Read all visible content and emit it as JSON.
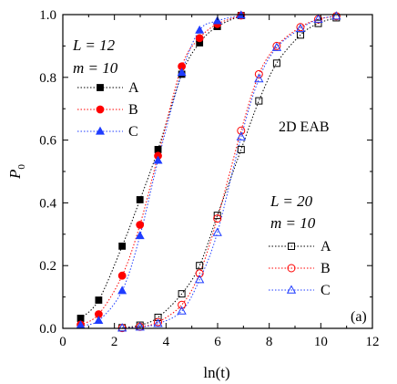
{
  "chart_data": {
    "type": "scatter",
    "xlabel": "ln(t)",
    "ylabel": "P",
    "ylabel_sub": "0",
    "xlim": [
      0,
      12
    ],
    "ylim": [
      0,
      1.0
    ],
    "xticks": [
      0,
      2,
      4,
      6,
      8,
      10,
      12
    ],
    "xtick_labels": [
      "0",
      "2",
      "4",
      "6",
      "8",
      "10",
      "12"
    ],
    "yticks": [
      0,
      0.2,
      0.4,
      0.6,
      0.8,
      1.0
    ],
    "ytick_labels": [
      "0.0",
      "0.2",
      "0.4",
      "0.6",
      "0.8",
      "1.0"
    ],
    "grid": false,
    "panel_label": "(a)",
    "annotation": "2D EAB",
    "colors": {
      "A": "#000000",
      "B": "#ff0000",
      "C": "#1f3cff"
    },
    "legends": [
      {
        "title_L": "L = 12",
        "title_m": "m = 10",
        "filled": true,
        "entries": [
          "A",
          "B",
          "C"
        ]
      },
      {
        "title_L": "L = 20",
        "title_m": "m = 10",
        "filled": false,
        "entries": [
          "A",
          "B",
          "C"
        ]
      }
    ],
    "series": [
      {
        "group": "L = 12",
        "name": "A",
        "marker": "square",
        "filled": true,
        "x": [
          0.69,
          1.39,
          2.3,
          2.99,
          3.69,
          4.61,
          5.3,
          5.99,
          6.91
        ],
        "y": [
          0.032,
          0.09,
          0.262,
          0.41,
          0.57,
          0.81,
          0.91,
          0.962,
          0.997
        ]
      },
      {
        "group": "L = 12",
        "name": "B",
        "marker": "circle",
        "filled": true,
        "x": [
          0.69,
          1.39,
          2.3,
          2.99,
          3.69,
          4.61,
          5.3,
          5.99,
          6.91
        ],
        "y": [
          0.012,
          0.045,
          0.168,
          0.33,
          0.55,
          0.835,
          0.925,
          0.97,
          0.997
        ]
      },
      {
        "group": "L = 12",
        "name": "C",
        "marker": "triangle",
        "filled": true,
        "x": [
          0.69,
          1.39,
          2.3,
          2.99,
          3.69,
          4.61,
          5.3,
          5.99,
          6.91
        ],
        "y": [
          0.01,
          0.025,
          0.12,
          0.295,
          0.535,
          0.815,
          0.95,
          0.98,
          0.998
        ]
      },
      {
        "group": "L = 20",
        "name": "A",
        "marker": "square",
        "filled": false,
        "x": [
          2.3,
          2.99,
          3.69,
          4.61,
          5.3,
          5.99,
          6.91,
          7.6,
          8.29,
          9.21,
          9.9,
          10.6
        ],
        "y": [
          0.002,
          0.01,
          0.035,
          0.11,
          0.2,
          0.36,
          0.57,
          0.725,
          0.845,
          0.935,
          0.972,
          0.99
        ]
      },
      {
        "group": "L = 20",
        "name": "B",
        "marker": "circle",
        "filled": false,
        "x": [
          2.3,
          2.99,
          3.69,
          4.61,
          5.3,
          5.99,
          6.91,
          7.6,
          8.29,
          9.21,
          9.9,
          10.6
        ],
        "y": [
          0.001,
          0.005,
          0.02,
          0.075,
          0.175,
          0.35,
          0.63,
          0.81,
          0.9,
          0.96,
          0.985,
          0.995
        ]
      },
      {
        "group": "L = 20",
        "name": "C",
        "marker": "triangle",
        "filled": false,
        "x": [
          2.3,
          2.99,
          3.69,
          4.61,
          5.3,
          5.99,
          6.91,
          7.6,
          8.29,
          9.21,
          9.9,
          10.6
        ],
        "y": [
          0.001,
          0.004,
          0.015,
          0.055,
          0.155,
          0.305,
          0.61,
          0.795,
          0.895,
          0.955,
          0.985,
          0.995
        ]
      }
    ]
  }
}
